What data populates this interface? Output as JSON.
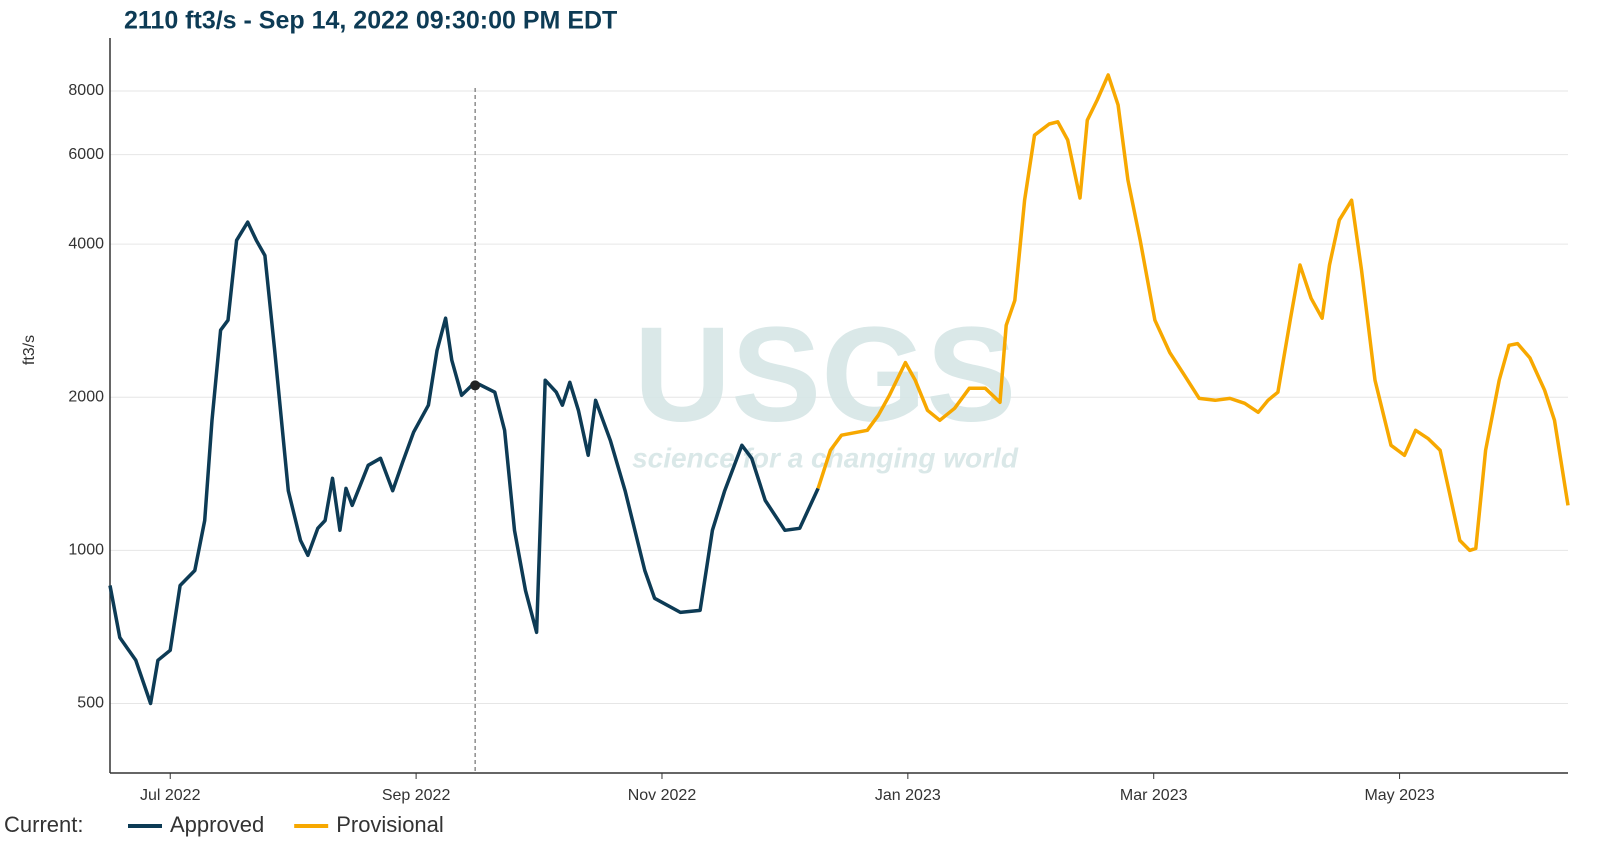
{
  "chart_data": {
    "type": "line",
    "title": "2110 ft3/s - Sep 14, 2022 09:30:00 PM EDT",
    "ylabel": "ft3/s",
    "legend_title": "Current:",
    "watermark": {
      "logo": "USGS",
      "tagline": "science for a changing world"
    },
    "log_y": true,
    "grid": true,
    "xlim": [
      -0.49,
      11.37
    ],
    "xticks": [
      {
        "value": 0,
        "label": "Jul 2022"
      },
      {
        "value": 2,
        "label": "Sep 2022"
      },
      {
        "value": 4,
        "label": "Nov 2022"
      },
      {
        "value": 6,
        "label": "Jan 2023"
      },
      {
        "value": 8,
        "label": "Mar 2023"
      },
      {
        "value": 10,
        "label": "May 2023"
      }
    ],
    "ylim": [
      365,
      10170
    ],
    "yticks": [
      500,
      1000,
      2000,
      4000,
      6000,
      8000
    ],
    "cursor": {
      "x": 2.48,
      "value": 2110
    },
    "series": [
      {
        "name": "Approved",
        "color": "#0d3b55",
        "x": [
          -0.49,
          -0.41,
          -0.28,
          -0.16,
          -0.1,
          0,
          0.08,
          0.2,
          0.28,
          0.34,
          0.41,
          0.47,
          0.54,
          0.63,
          0.7,
          0.77,
          0.85,
          0.96,
          1.06,
          1.12,
          1.2,
          1.26,
          1.32,
          1.38,
          1.43,
          1.48,
          1.61,
          1.71,
          1.81,
          1.89,
          1.98,
          2.1,
          2.17,
          2.24,
          2.29,
          2.37,
          2.48,
          2.64,
          2.72,
          2.8,
          2.89,
          2.98,
          3.05,
          3.14,
          3.19,
          3.25,
          3.32,
          3.4,
          3.46,
          3.58,
          3.7,
          3.86,
          3.94,
          4.15,
          4.31,
          4.41,
          4.51,
          4.65,
          4.73,
          4.84,
          5.0,
          5.12,
          5.27
        ],
        "values": [
          853,
          674,
          608,
          500,
          608,
          636,
          853,
          913,
          1145,
          1802,
          2709,
          2835,
          4070,
          4420,
          4070,
          3800,
          2470,
          1310,
          1046,
          978,
          1105,
          1145,
          1386,
          1095,
          1324,
          1226,
          1470,
          1517,
          1310,
          1490,
          1707,
          1929,
          2470,
          2860,
          2365,
          2018,
          2140,
          2046,
          1722,
          1095,
          834,
          690,
          2160,
          2046,
          1929,
          2140,
          1885,
          1538,
          1973,
          1646,
          1310,
          913,
          805,
          755,
          762,
          1095,
          1310,
          1609,
          1517,
          1254,
          1095,
          1105,
          1324
        ]
      },
      {
        "name": "Provisional",
        "color": "#f7a800",
        "x": [
          5.27,
          5.37,
          5.46,
          5.59,
          5.67,
          5.76,
          5.85,
          5.98,
          6.06,
          6.16,
          6.26,
          6.38,
          6.5,
          6.63,
          6.75,
          6.8,
          6.87,
          6.95,
          7.03,
          7.15,
          7.22,
          7.3,
          7.4,
          7.46,
          7.54,
          7.63,
          7.71,
          7.79,
          7.89,
          8.01,
          8.13,
          8.25,
          8.37,
          8.5,
          8.62,
          8.74,
          8.85,
          8.93,
          9.01,
          9.11,
          9.19,
          9.28,
          9.37,
          9.43,
          9.51,
          9.61,
          9.69,
          9.8,
          9.93,
          10.04,
          10.13,
          10.23,
          10.33,
          10.41,
          10.49,
          10.57,
          10.62,
          10.7,
          10.81,
          10.89,
          10.96,
          11.06,
          11.18,
          11.26,
          11.37
        ],
        "values": [
          1324,
          1573,
          1684,
          1707,
          1722,
          1843,
          2018,
          2340,
          2160,
          1885,
          1802,
          1902,
          2083,
          2083,
          1955,
          2770,
          3100,
          4880,
          6550,
          6890,
          6960,
          6410,
          4930,
          7010,
          7680,
          8600,
          7510,
          5350,
          4070,
          2835,
          2450,
          2210,
          1990,
          1973,
          1990,
          1946,
          1868,
          1973,
          2046,
          2835,
          3640,
          3130,
          2860,
          3640,
          4460,
          4880,
          3560,
          2160,
          1609,
          1538,
          1722,
          1660,
          1573,
          1283,
          1046,
          1000,
          1009,
          1573,
          2160,
          2530,
          2550,
          2390,
          2065,
          1802,
          1226
        ]
      }
    ]
  }
}
